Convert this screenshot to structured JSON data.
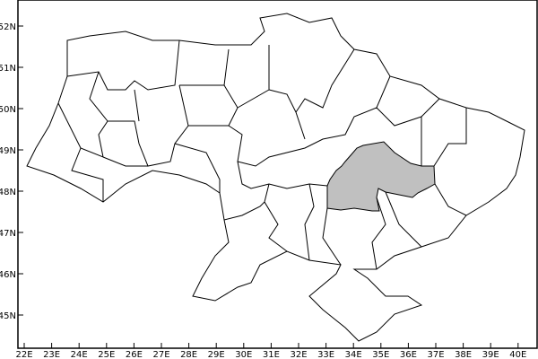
{
  "map": {
    "highlighted_region_color": "#c0c0c0",
    "border_color": "#000000",
    "x_ticks": [
      "22E",
      "23E",
      "24E",
      "25E",
      "26E",
      "27E",
      "28E",
      "29E",
      "30E",
      "31E",
      "32E",
      "33E",
      "34E",
      "35E",
      "36E",
      "37E",
      "38E",
      "39E",
      "40E"
    ],
    "y_ticks": [
      "52N",
      "51N",
      "50N",
      "49N",
      "48N",
      "47N",
      "46N",
      "45N"
    ],
    "lon_range": [
      22,
      40
    ],
    "lat_range": [
      45,
      52
    ]
  }
}
